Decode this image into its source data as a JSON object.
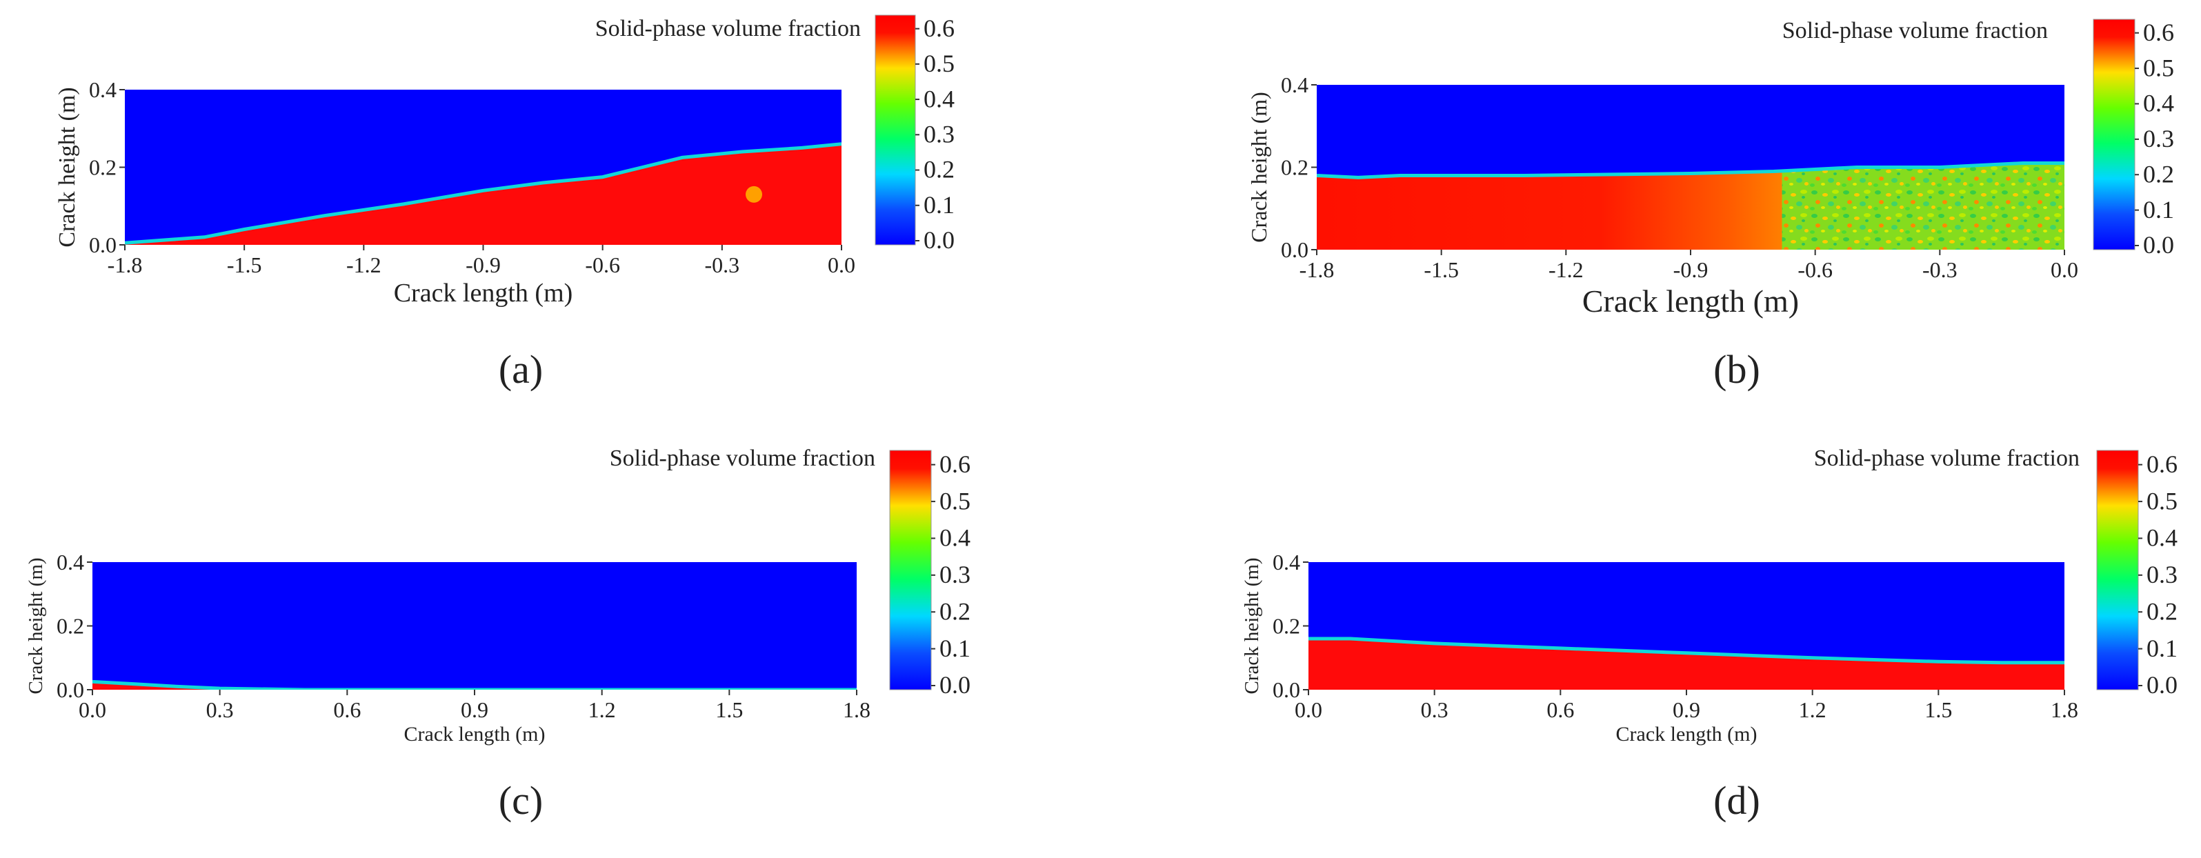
{
  "colors": {
    "background": "#0000ff",
    "solid": "#ff0a0a",
    "interface": "#11d8d8",
    "colorbar_stops": [
      {
        "value": 0.0,
        "color": "#0000ff"
      },
      {
        "value": 0.1,
        "color": "#0a4dff"
      },
      {
        "value": 0.2,
        "color": "#00d8ff"
      },
      {
        "value": 0.3,
        "color": "#00ff66"
      },
      {
        "value": 0.4,
        "color": "#66ff00"
      },
      {
        "value": 0.5,
        "color": "#ffe000"
      },
      {
        "value": 0.6,
        "color": "#ff1000"
      },
      {
        "value": 0.65,
        "color": "#ff0000"
      }
    ]
  },
  "chart_data": [
    {
      "type": "heatmap",
      "panel_label": "(a)",
      "title": "Solid-phase volume fraction",
      "xlabel": "Crack length (m)",
      "ylabel": "Crack height (m)",
      "xlim": [
        -1.8,
        0.0
      ],
      "ylim": [
        0.0,
        0.4
      ],
      "xticks": [
        "-1.8",
        "-1.5",
        "-1.2",
        "-0.9",
        "-0.6",
        "-0.3",
        "0.0"
      ],
      "yticks": [
        "0.0",
        "0.2",
        "0.4"
      ],
      "colorbar": {
        "range": [
          0.0,
          0.65
        ],
        "ticks": [
          "0.0",
          "0.1",
          "0.2",
          "0.3",
          "0.4",
          "0.5",
          "0.6"
        ]
      },
      "fill_surface": {
        "x": [
          -1.8,
          -1.6,
          -1.5,
          -1.3,
          -1.1,
          -0.9,
          -0.75,
          -0.6,
          -0.5,
          -0.4,
          -0.25,
          -0.1,
          0.0
        ],
        "height": [
          0.005,
          0.02,
          0.04,
          0.075,
          0.105,
          0.14,
          0.16,
          0.175,
          0.2,
          0.225,
          0.24,
          0.25,
          0.26
        ]
      },
      "solid_phase_value": 0.63,
      "variegated_region_x": null,
      "particle": {
        "x": -0.22,
        "y": 0.13,
        "value": 0.55
      }
    },
    {
      "type": "heatmap",
      "panel_label": "(b)",
      "title": "Solid-phase volume fraction",
      "xlabel": "Crack length (m)",
      "ylabel": "Crack height (m)",
      "xlim": [
        -1.8,
        0.0
      ],
      "ylim": [
        0.0,
        0.4
      ],
      "xticks": [
        "-1.8",
        "-1.5",
        "-1.2",
        "-0.9",
        "-0.6",
        "-0.3",
        "0.0"
      ],
      "yticks": [
        "0.0",
        "0.2",
        "0.4"
      ],
      "colorbar": {
        "range": [
          0.0,
          0.65
        ],
        "ticks": [
          "0.0",
          "0.1",
          "0.2",
          "0.3",
          "0.4",
          "0.5",
          "0.6"
        ]
      },
      "fill_surface": {
        "x": [
          -1.8,
          -1.7,
          -1.6,
          -1.3,
          -0.9,
          -0.7,
          -0.5,
          -0.3,
          -0.1,
          0.0
        ],
        "height": [
          0.18,
          0.175,
          0.18,
          0.18,
          0.185,
          0.19,
          0.2,
          0.2,
          0.21,
          0.21
        ]
      },
      "solid_phase_value": 0.63,
      "variegated_region_x": [
        -0.68,
        0.0
      ],
      "particle": null
    },
    {
      "type": "heatmap",
      "panel_label": "(c)",
      "title": "Solid-phase volume fraction",
      "xlabel": "Crack length (m)",
      "ylabel": "Crack height (m)",
      "xlim": [
        0.0,
        1.8
      ],
      "ylim": [
        0.0,
        0.4
      ],
      "xticks": [
        "0.0",
        "0.3",
        "0.6",
        "0.9",
        "1.2",
        "1.5",
        "1.8"
      ],
      "yticks": [
        "0.0",
        "0.2",
        "0.4"
      ],
      "colorbar": {
        "range": [
          0.0,
          0.65
        ],
        "ticks": [
          "0.0",
          "0.1",
          "0.2",
          "0.3",
          "0.4",
          "0.5",
          "0.6"
        ]
      },
      "fill_surface": {
        "x": [
          0.0,
          0.1,
          0.2,
          0.3,
          0.5,
          1.8
        ],
        "height": [
          0.025,
          0.018,
          0.01,
          0.004,
          0.0,
          0.0
        ]
      },
      "solid_phase_value": 0.63,
      "variegated_region_x": null,
      "particle": null
    },
    {
      "type": "heatmap",
      "panel_label": "(d)",
      "title": "Solid-phase volume fraction",
      "xlabel": "Crack length (m)",
      "ylabel": "Crack height (m)",
      "xlim": [
        0.0,
        1.8
      ],
      "ylim": [
        0.0,
        0.4
      ],
      "xticks": [
        "0.0",
        "0.3",
        "0.6",
        "0.9",
        "1.2",
        "1.5",
        "1.8"
      ],
      "yticks": [
        "0.0",
        "0.2",
        "0.4"
      ],
      "colorbar": {
        "range": [
          0.0,
          0.65
        ],
        "ticks": [
          "0.0",
          "0.1",
          "0.2",
          "0.3",
          "0.4",
          "0.5",
          "0.6"
        ]
      },
      "fill_surface": {
        "x": [
          0.0,
          0.1,
          0.3,
          0.6,
          0.9,
          1.2,
          1.5,
          1.65,
          1.8
        ],
        "height": [
          0.16,
          0.16,
          0.145,
          0.13,
          0.115,
          0.1,
          0.088,
          0.085,
          0.085
        ]
      },
      "solid_phase_value": 0.63,
      "variegated_region_x": null,
      "particle": null
    }
  ]
}
